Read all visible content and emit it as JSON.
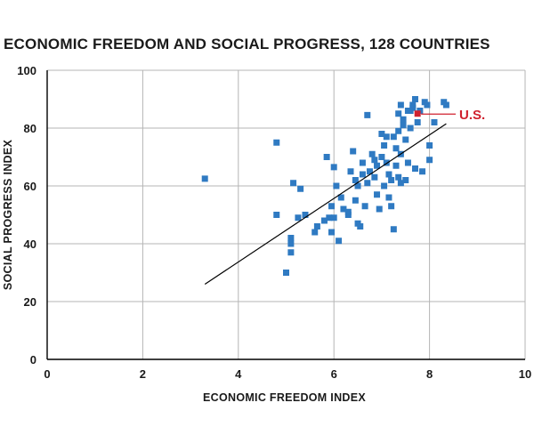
{
  "chart_data": {
    "type": "scatter",
    "title": "ECONOMIC FREEDOM AND SOCIAL PROGRESS, 128 COUNTRIES",
    "xlabel": "ECONOMIC FREEDOM INDEX",
    "ylabel": "SOCIAL PROGRESS INDEX",
    "xlim": [
      0,
      10
    ],
    "ylim": [
      0,
      100
    ],
    "xticks": [
      "0",
      "2",
      "4",
      "6",
      "8",
      "10"
    ],
    "yticks": [
      "0",
      "20",
      "40",
      "60",
      "80",
      "100"
    ],
    "grid": true,
    "colors": {
      "points": "#2f7ac2",
      "highlight": "#d0202e",
      "grid": "#b5b5b5",
      "trend": "#000000",
      "axis": "#000000"
    },
    "trend_line": {
      "x": [
        3.3,
        8.35
      ],
      "y": [
        26,
        81.5
      ]
    },
    "series": [
      {
        "points": [
          [
            3.3,
            62.5
          ],
          [
            4.8,
            75
          ],
          [
            4.8,
            50
          ],
          [
            5.0,
            30
          ],
          [
            5.1,
            40
          ],
          [
            5.1,
            42
          ],
          [
            5.1,
            37
          ],
          [
            5.15,
            61
          ],
          [
            5.3,
            59
          ],
          [
            5.25,
            49
          ],
          [
            5.4,
            50
          ],
          [
            5.6,
            44
          ],
          [
            5.65,
            46
          ],
          [
            5.8,
            48
          ],
          [
            5.9,
            49
          ],
          [
            5.95,
            44
          ],
          [
            6.0,
            49
          ],
          [
            6.05,
            60
          ],
          [
            6.0,
            66.5
          ],
          [
            5.85,
            70
          ],
          [
            6.1,
            41
          ],
          [
            6.2,
            52
          ],
          [
            6.3,
            50
          ],
          [
            6.35,
            65
          ],
          [
            6.4,
            72
          ],
          [
            6.45,
            62
          ],
          [
            6.5,
            60
          ],
          [
            6.45,
            55
          ],
          [
            6.5,
            47
          ],
          [
            6.55,
            46
          ],
          [
            6.6,
            68
          ],
          [
            6.65,
            53
          ],
          [
            6.7,
            61
          ],
          [
            6.75,
            65
          ],
          [
            6.8,
            71
          ],
          [
            6.85,
            63
          ],
          [
            6.9,
            57
          ],
          [
            6.95,
            52
          ],
          [
            6.9,
            67
          ],
          [
            7.0,
            70
          ],
          [
            7.05,
            60
          ],
          [
            7.0,
            78
          ],
          [
            7.1,
            77
          ],
          [
            7.1,
            68
          ],
          [
            7.15,
            64
          ],
          [
            7.2,
            62
          ],
          [
            7.15,
            56
          ],
          [
            7.2,
            53
          ],
          [
            7.25,
            45
          ],
          [
            7.3,
            73
          ],
          [
            7.3,
            67
          ],
          [
            7.35,
            79
          ],
          [
            7.35,
            63
          ],
          [
            7.4,
            71
          ],
          [
            7.4,
            61
          ],
          [
            7.35,
            85
          ],
          [
            7.4,
            88
          ],
          [
            7.45,
            83
          ],
          [
            7.5,
            76
          ],
          [
            7.55,
            68
          ],
          [
            7.5,
            62
          ],
          [
            7.6,
            86
          ],
          [
            7.6,
            80
          ],
          [
            7.65,
            88
          ],
          [
            7.7,
            90
          ],
          [
            7.75,
            82
          ],
          [
            7.8,
            86
          ],
          [
            7.7,
            66
          ],
          [
            7.85,
            65
          ],
          [
            7.9,
            89
          ],
          [
            7.95,
            88
          ],
          [
            8.0,
            74
          ],
          [
            8.0,
            69
          ],
          [
            8.1,
            82
          ],
          [
            8.3,
            89
          ],
          [
            8.35,
            88
          ],
          [
            6.7,
            84.5
          ],
          [
            6.15,
            56
          ],
          [
            6.3,
            51
          ],
          [
            7.25,
            77
          ],
          [
            7.45,
            81
          ],
          [
            6.85,
            69
          ],
          [
            5.95,
            53
          ],
          [
            6.6,
            64
          ],
          [
            7.05,
            74
          ],
          [
            7.55,
            86
          ],
          [
            7.65,
            87
          ]
        ]
      }
    ],
    "highlight": {
      "label": "U.S.",
      "x": 7.75,
      "y": 85
    }
  }
}
